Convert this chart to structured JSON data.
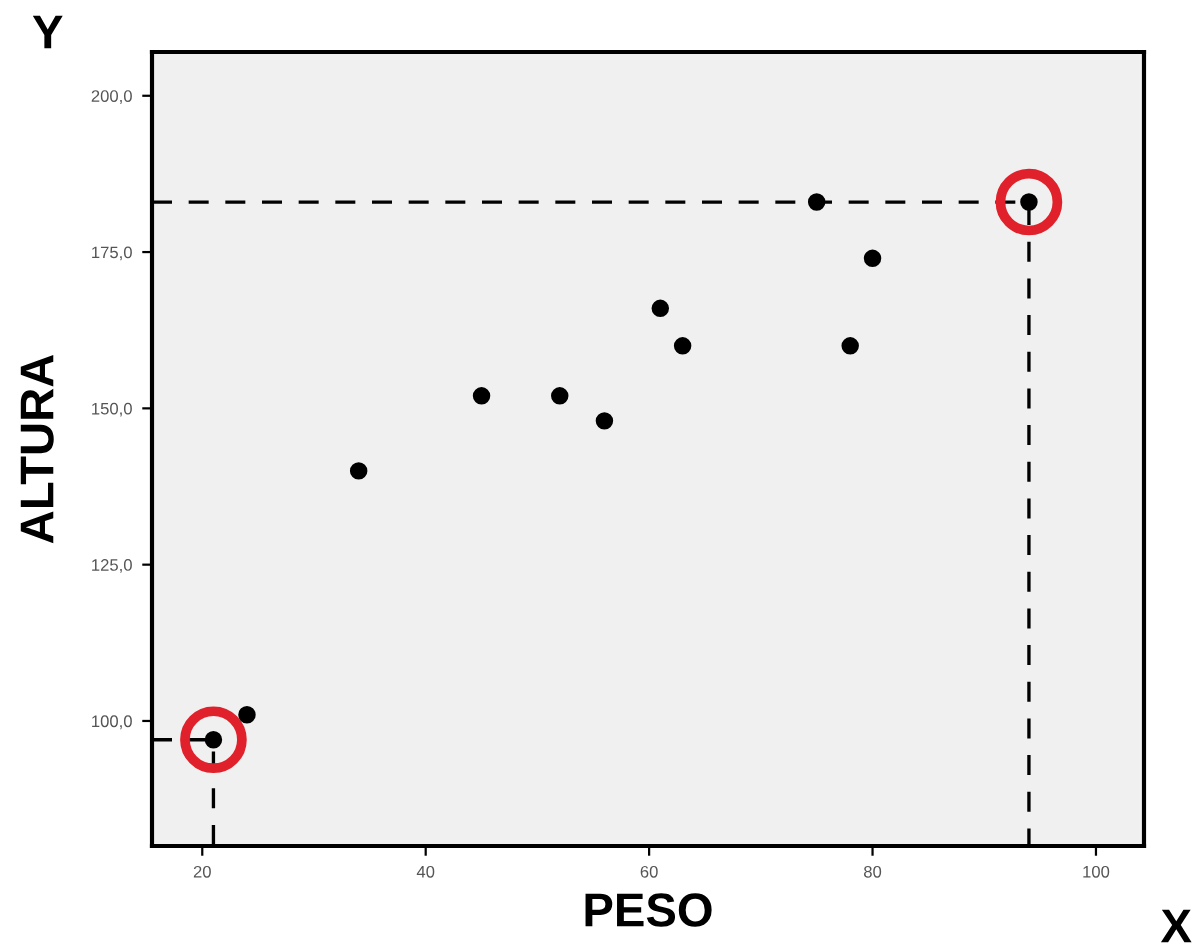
{
  "chart_data": {
    "type": "scatter",
    "xlabel": "PESO",
    "ylabel": "ALTURA",
    "annotations": [
      "Y",
      "X"
    ],
    "series": [
      {
        "color": "#000000",
        "x": [
          21,
          24,
          34,
          45,
          52,
          56,
          61,
          63,
          75,
          78,
          80,
          94
        ],
        "values": [
          97,
          101,
          140,
          152,
          152,
          148,
          166,
          160,
          183,
          160,
          174,
          183
        ]
      },
      {
        "color": "#e0202a",
        "x": [
          21,
          94
        ],
        "values": [
          97,
          183
        ]
      },
      {
        "type": "line",
        "color": "#000000",
        "line_style": "dashed",
        "marker": "none",
        "x": [
          15.5,
          94,
          94
        ],
        "values": [
          183,
          183,
          80
        ]
      },
      {
        "type": "line",
        "color": "#000000",
        "line_style": "dashed",
        "marker": "none",
        "x": [
          15.5,
          21,
          21
        ],
        "values": [
          97,
          97,
          80
        ]
      }
    ],
    "xlim": [
      15.5,
      104.3
    ],
    "ylim": [
      80,
      207
    ],
    "xticks": [
      20,
      40,
      60,
      80,
      100
    ],
    "yticks": [
      {
        "value": 100,
        "label": "100,0"
      },
      {
        "value": 125,
        "label": "125,0"
      },
      {
        "value": 150,
        "label": "150,0"
      },
      {
        "value": 175,
        "label": "175,0"
      },
      {
        "value": 200,
        "label": "200,0"
      }
    ],
    "marker": "circle",
    "grid": false
  }
}
